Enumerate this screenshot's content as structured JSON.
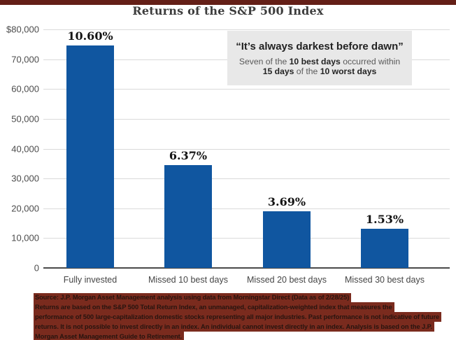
{
  "title": "Returns of the S&P 500 Index",
  "colors": {
    "bar_blue": "#1056A0",
    "top_accent": "#641F17",
    "footer_highlight": "#7A2B1E",
    "quote_box_bg": "#E8E8E8",
    "gridline": "#DADADA"
  },
  "quote_box": {
    "headline": "“It’s always darkest before dawn”",
    "line2_segments": [
      {
        "t": "Seven of the ",
        "b": false
      },
      {
        "t": "10 best days",
        "b": true
      },
      {
        "t": " occurred within",
        "b": false
      }
    ],
    "line3_segments": [
      {
        "t": "15 days",
        "b": true
      },
      {
        "t": " of the ",
        "b": false
      },
      {
        "t": "10 worst days",
        "b": true
      }
    ]
  },
  "chart_data": {
    "type": "bar",
    "title": "Returns of the S&P 500 Index",
    "categories": [
      "Fully invested",
      "Missed 10 best days",
      "Missed 20 best days",
      "Missed 30 best days"
    ],
    "values": [
      74500,
      34500,
      19000,
      13100
    ],
    "bar_labels": [
      "10.60%",
      "6.37%",
      "3.69%",
      "1.53%"
    ],
    "xlabel": "",
    "ylabel": "",
    "ylim": [
      0,
      80000
    ],
    "ytick_values": [
      80000,
      70000,
      60000,
      50000,
      40000,
      30000,
      20000,
      10000,
      0
    ],
    "ytick_labels": [
      "$80,000",
      "70,000",
      "60,000",
      "50,000",
      "40,000",
      "30,000",
      "20,000",
      "10,000",
      "0"
    ],
    "grid": true,
    "legend": false,
    "bar_color": "#1056A0",
    "annotation": "“It’s always darkest before dawn” — Seven of the 10 best days occurred within 15 days of the 10 worst days"
  },
  "footer": {
    "lines": [
      "Source: J.P. Morgan Asset Management analysis using data from Morningstar Direct (Data as of 2/28/25)",
      "Returns are based on the S&P 500 Total Return Index, an unmanaged, capitalization-weighted index that measures the",
      "performance of 500 large-capitalization domestic stocks representing all major industries. Past performance is not indicative of future",
      "returns. It is not possible to invest directly in an index. An individual cannot invest directly in an index. Analysis is based on the J.P.",
      "Morgan Asset Management Guide to Retirement."
    ]
  }
}
